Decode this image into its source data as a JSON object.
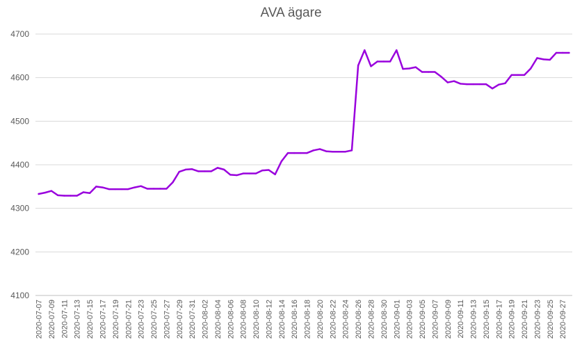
{
  "chart_data": {
    "type": "line",
    "title": "AVA ägare",
    "xlabel": "",
    "ylabel": "",
    "ylim": [
      4100,
      4700
    ],
    "yticks": [
      "4100",
      "4200",
      "4300",
      "4400",
      "4500",
      "4600",
      "4700"
    ],
    "grid": true,
    "legend": "none",
    "color": "#9900dd",
    "x": [
      "2020-07-07",
      "2020-07-08",
      "2020-07-09",
      "2020-07-10",
      "2020-07-11",
      "2020-07-12",
      "2020-07-13",
      "2020-07-14",
      "2020-07-15",
      "2020-07-16",
      "2020-07-17",
      "2020-07-18",
      "2020-07-19",
      "2020-07-20",
      "2020-07-21",
      "2020-07-22",
      "2020-07-23",
      "2020-07-24",
      "2020-07-25",
      "2020-07-26",
      "2020-07-27",
      "2020-07-28",
      "2020-07-29",
      "2020-07-30",
      "2020-07-31",
      "2020-08-01",
      "2020-08-02",
      "2020-08-03",
      "2020-08-04",
      "2020-08-05",
      "2020-08-06",
      "2020-08-07",
      "2020-08-08",
      "2020-08-09",
      "2020-08-10",
      "2020-08-11",
      "2020-08-12",
      "2020-08-13",
      "2020-08-14",
      "2020-08-15",
      "2020-08-16",
      "2020-08-17",
      "2020-08-18",
      "2020-08-19",
      "2020-08-20",
      "2020-08-21",
      "2020-08-22",
      "2020-08-23",
      "2020-08-24",
      "2020-08-25",
      "2020-08-26",
      "2020-08-27",
      "2020-08-28",
      "2020-08-29",
      "2020-08-30",
      "2020-08-31",
      "2020-09-01",
      "2020-09-02",
      "2020-09-03",
      "2020-09-04",
      "2020-09-05",
      "2020-09-06",
      "2020-09-07",
      "2020-09-08",
      "2020-09-09",
      "2020-09-10",
      "2020-09-11",
      "2020-09-12",
      "2020-09-13",
      "2020-09-14",
      "2020-09-15",
      "2020-09-16",
      "2020-09-17",
      "2020-09-18",
      "2020-09-19",
      "2020-09-20",
      "2020-09-21",
      "2020-09-22",
      "2020-09-23",
      "2020-09-24",
      "2020-09-25",
      "2020-09-26",
      "2020-09-27",
      "2020-09-28"
    ],
    "x_tick_labels": [
      "2020-07-07",
      "2020-07-09",
      "2020-07-11",
      "2020-07-13",
      "2020-07-15",
      "2020-07-17",
      "2020-07-19",
      "2020-07-21",
      "2020-07-23",
      "2020-07-25",
      "2020-07-27",
      "2020-07-29",
      "2020-07-31",
      "2020-08-02",
      "2020-08-04",
      "2020-08-06",
      "2020-08-08",
      "2020-08-10",
      "2020-08-12",
      "2020-08-14",
      "2020-08-16",
      "2020-08-18",
      "2020-08-20",
      "2020-08-22",
      "2020-08-24",
      "2020-08-26",
      "2020-08-28",
      "2020-08-30",
      "2020-09-01",
      "2020-09-03",
      "2020-09-05",
      "2020-09-07",
      "2020-09-09",
      "2020-09-11",
      "2020-09-13",
      "2020-09-15",
      "2020-09-17",
      "2020-09-19",
      "2020-09-21",
      "2020-09-23",
      "2020-09-25",
      "2020-09-27"
    ],
    "series": [
      {
        "values": [
          4333,
          4336,
          4340,
          4330,
          4329,
          4329,
          4329,
          4337,
          4335,
          4350,
          4348,
          4344,
          4344,
          4344,
          4344,
          4348,
          4351,
          4345,
          4345,
          4345,
          4345,
          4360,
          4384,
          4389,
          4390,
          4385,
          4385,
          4385,
          4393,
          4389,
          4377,
          4376,
          4380,
          4380,
          4380,
          4387,
          4388,
          4378,
          4408,
          4427,
          4427,
          4427,
          4427,
          4433,
          4436,
          4431,
          4430,
          4430,
          4430,
          4433,
          4628,
          4663,
          4626,
          4637,
          4637,
          4637,
          4663,
          4620,
          4621,
          4624,
          4613,
          4613,
          4613,
          4602,
          4589,
          4592,
          4586,
          4585,
          4585,
          4585,
          4585,
          4575,
          4584,
          4587,
          4606,
          4606,
          4606,
          4621,
          4645,
          4642,
          4641,
          4657,
          4657,
          4657
        ]
      }
    ]
  }
}
